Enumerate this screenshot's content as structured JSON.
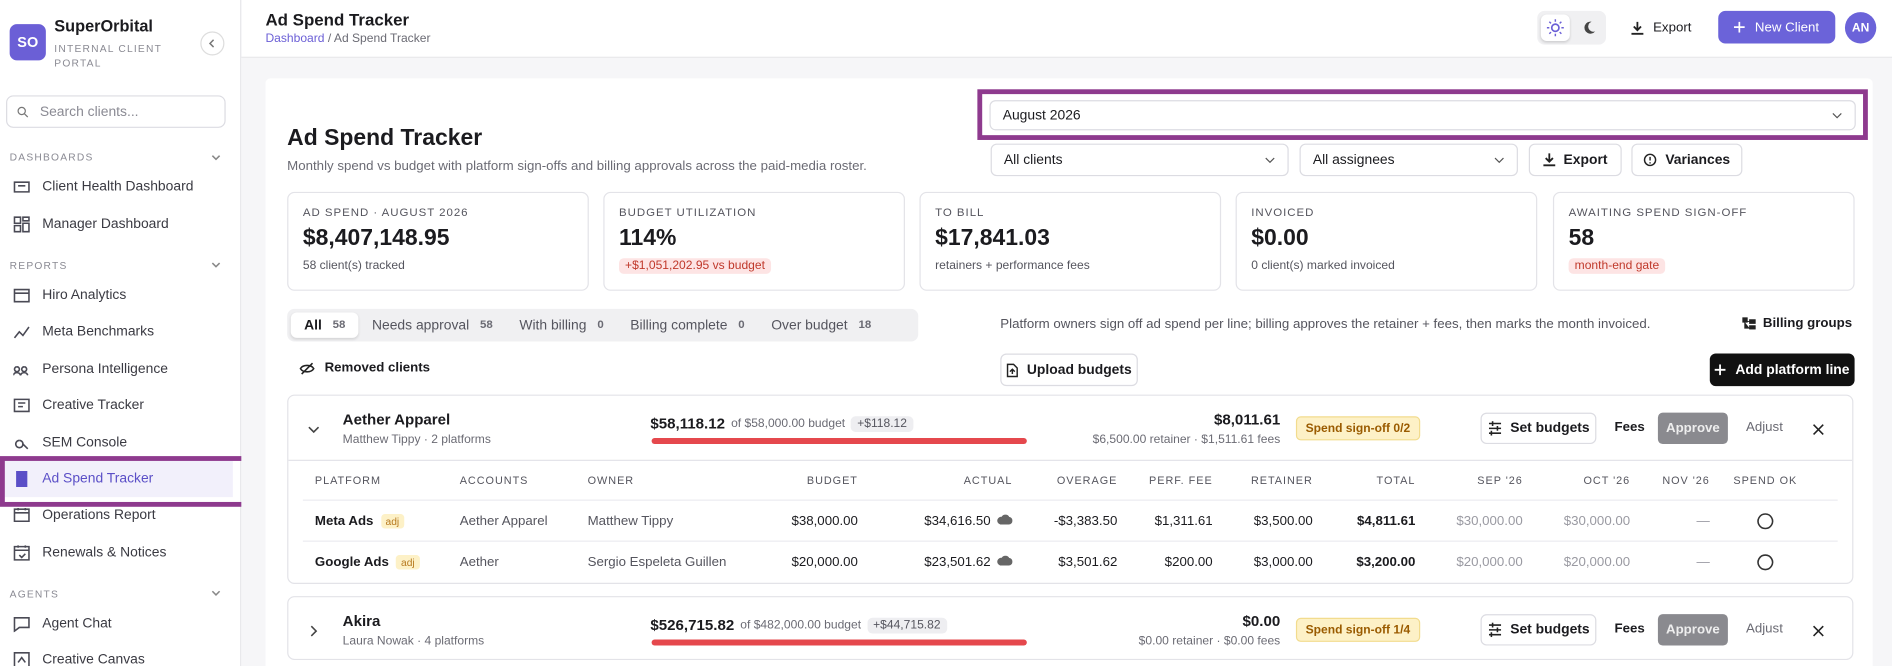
{
  "sidebar": {
    "logo": "SO",
    "brand": "SuperOrbital",
    "tagline": "INTERNAL CLIENT PORTAL",
    "search_placeholder": "Search clients...",
    "sections": [
      {
        "title": "DASHBOARDS",
        "items": [
          {
            "label": "Client Health Dashboard"
          },
          {
            "label": "Manager Dashboard"
          }
        ]
      },
      {
        "title": "REPORTS",
        "items": [
          {
            "label": "Hiro Analytics"
          },
          {
            "label": "Meta Benchmarks"
          },
          {
            "label": "Persona Intelligence"
          },
          {
            "label": "Creative Tracker"
          },
          {
            "label": "SEM Console"
          },
          {
            "label": "Ad Spend Tracker",
            "active": true
          },
          {
            "label": "Operations Report"
          },
          {
            "label": "Renewals & Notices"
          }
        ]
      },
      {
        "title": "AGENTS",
        "items": [
          {
            "label": "Agent Chat"
          },
          {
            "label": "Creative Canvas"
          }
        ]
      }
    ]
  },
  "header": {
    "title": "Ad Spend Tracker",
    "breadcrumb": {
      "parent": "Dashboard",
      "separator": "/",
      "current": "Ad Spend Tracker"
    },
    "export": "Export",
    "new_client": "New Client",
    "avatar": "AN"
  },
  "page": {
    "month": "August 2026",
    "title": "Ad Spend Tracker",
    "subtitle": "Monthly spend vs budget with platform sign-offs and billing approvals across the paid-media roster.",
    "filters": [
      "All clients",
      "All assignees"
    ],
    "buttons": [
      "Export",
      "Variances"
    ],
    "kpis": [
      {
        "label": "AD SPEND · AUGUST 2026",
        "value": "$8,407,148.95",
        "note": "58 client(s) tracked"
      },
      {
        "label": "BUDGET UTILIZATION",
        "value": "114%",
        "badge": "+$1,051,202.95 vs budget"
      },
      {
        "label": "TO BILL",
        "value": "$17,841.03",
        "note": "retainers + performance fees"
      },
      {
        "label": "INVOICED",
        "value": "$0.00",
        "note": "0 client(s) marked invoiced"
      },
      {
        "label": "AWAITING SPEND SIGN-OFF",
        "value": "58",
        "badge": "month-end gate"
      }
    ],
    "tabs": [
      {
        "label": "All",
        "count": 58,
        "active": true
      },
      {
        "label": "Needs approval",
        "count": 58
      },
      {
        "label": "With billing",
        "count": 0
      },
      {
        "label": "Billing complete",
        "count": 0
      },
      {
        "label": "Over budget",
        "count": 18
      }
    ],
    "info": "Platform owners sign off ad spend per line; billing approves the retainer + fees, then marks the month invoiced.",
    "billing_groups": "Billing groups",
    "removed_clients": "Removed clients",
    "upload_budgets": "Upload budgets",
    "add_platform_line": "Add platform line"
  },
  "clients": [
    {
      "name": "Aether Apparel",
      "meta": "Matthew Tippy · 2 platforms",
      "spend": "$58,118.12",
      "budget": "of $58,000.00 budget",
      "delta": "+$118.12",
      "total": "$8,011.61",
      "breakdown": "$6,500.00 retainer · $1,511.61 fees",
      "status": "Spend sign-off 0/2",
      "actions": [
        "Set budgets",
        "Fees",
        "Approve",
        "Adjust"
      ],
      "expanded": true,
      "table": {
        "columns": [
          "PLATFORM",
          "ACCOUNTS",
          "OWNER",
          "BUDGET",
          "ACTUAL",
          "OVERAGE",
          "PERF. FEE",
          "RETAINER",
          "TOTAL",
          "SEP '26",
          "OCT '26",
          "NOV '26",
          "SPEND OK"
        ],
        "rows": [
          {
            "platform": "Meta Ads",
            "tag": "adj",
            "cells": [
              "Aether Apparel",
              "Matthew Tippy",
              "$38,000.00",
              "$34,616.50",
              "-$3,383.50",
              "$1,311.61",
              "$3,500.00",
              "$4,811.61",
              "$30,000.00",
              "$30,000.00",
              "—"
            ]
          },
          {
            "platform": "Google Ads",
            "tag": "adj",
            "cells": [
              "Aether",
              "Sergio Espeleta Guillen",
              "$20,000.00",
              "$23,501.62",
              "$3,501.62",
              "$200.00",
              "$3,000.00",
              "$3,200.00",
              "$20,000.00",
              "$20,000.00",
              "—"
            ]
          }
        ]
      }
    },
    {
      "name": "Akira",
      "meta": "Laura Nowak · 4 platforms",
      "spend": "$526,715.82",
      "budget": "of $482,000.00 budget",
      "delta": "+$44,715.82",
      "total": "$0.00",
      "breakdown": "$0.00 retainer · $0.00 fees",
      "status": "Spend sign-off 1/4",
      "actions": [
        "Set budgets",
        "Fees",
        "Approve",
        "Adjust"
      ],
      "expanded": false
    }
  ]
}
